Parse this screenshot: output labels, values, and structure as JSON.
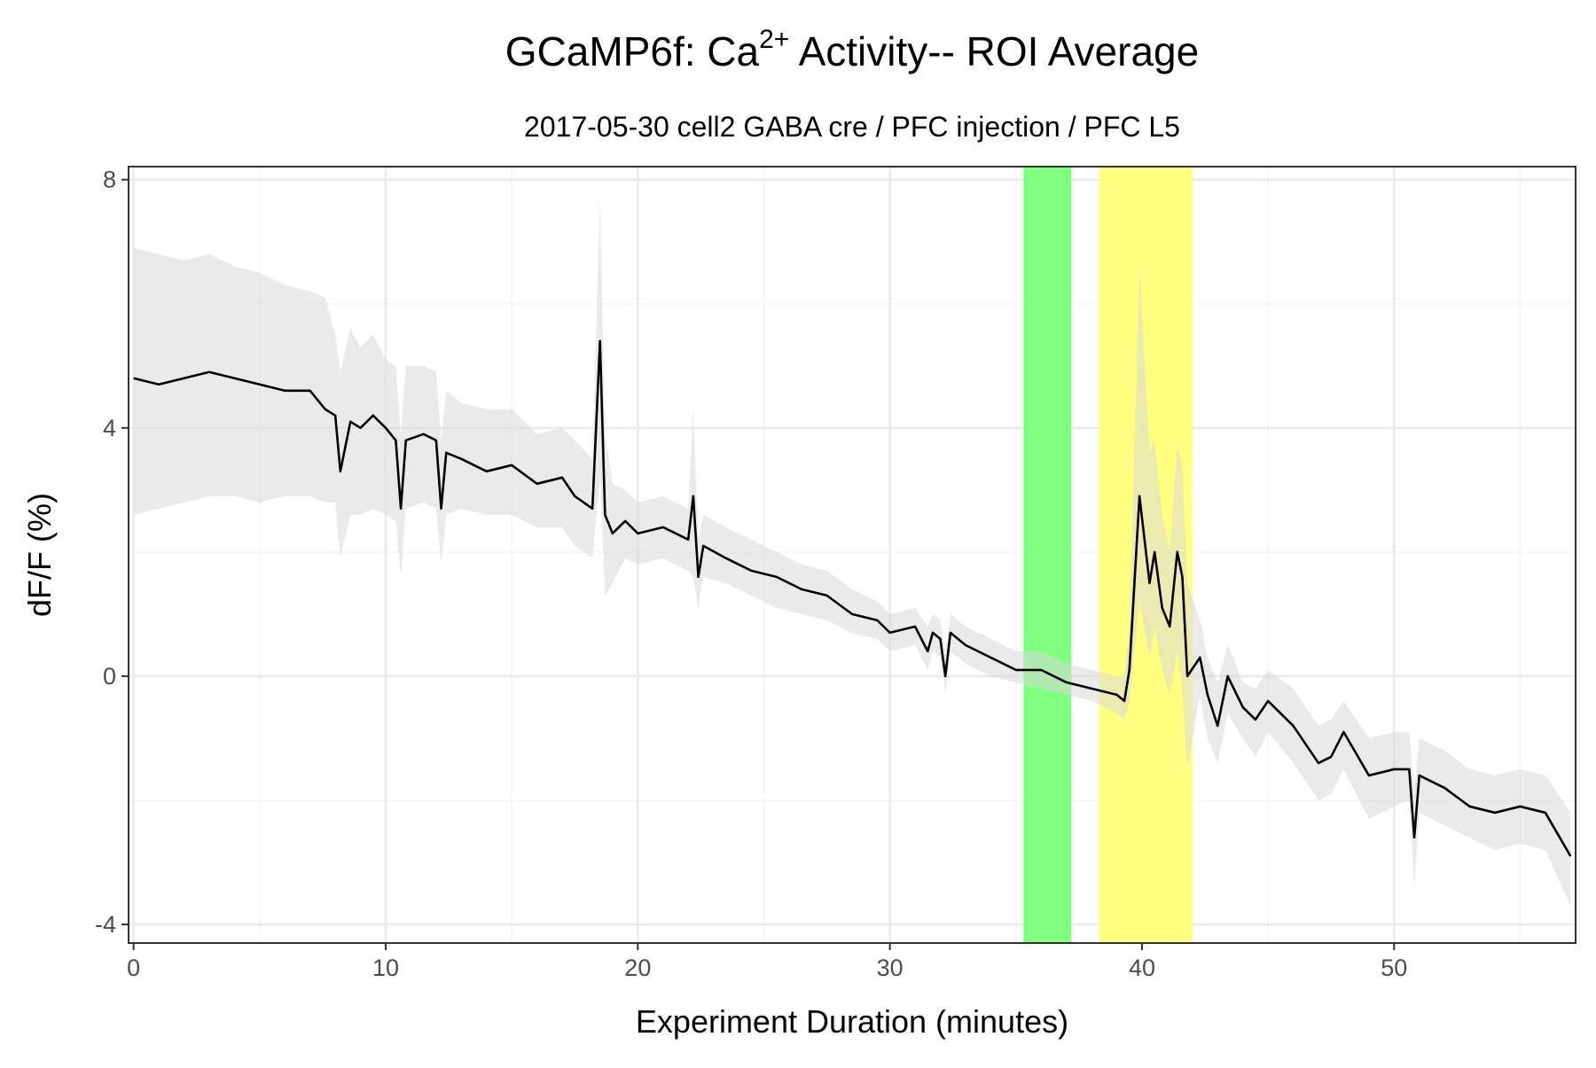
{
  "chart_data": {
    "type": "line",
    "title": [
      "GCaMP6f: Ca",
      "2+",
      " Activity-- ROI Average"
    ],
    "subtitle": "2017-05-30 cell2 GABA cre / PFC injection / PFC L5",
    "x_label": "Experiment Duration (minutes)",
    "y_label": "dF/F (%)",
    "xlim": [
      -0.2,
      57.2
    ],
    "ylim": [
      -4.3,
      8.21
    ],
    "xticks": [
      0,
      10,
      20,
      30,
      40,
      50
    ],
    "yticks": [
      -4,
      0,
      4,
      8
    ],
    "x_minor_ticks": [
      5,
      15,
      25,
      35,
      45,
      55
    ],
    "y_minor_ticks": [
      -2,
      2,
      6
    ],
    "grid": true,
    "highlights": [
      {
        "xmin": 35.3,
        "xmax": 37.2,
        "color": "#80ff80"
      },
      {
        "xmin": 38.3,
        "xmax": 42.0,
        "color": "#ffff80"
      }
    ],
    "x": [
      0,
      1,
      2,
      3,
      4,
      5,
      6,
      7,
      7.6,
      8.0,
      8.2,
      8.6,
      9,
      9.5,
      10,
      10.4,
      10.6,
      10.8,
      11.5,
      12,
      12.2,
      12.4,
      13,
      14,
      15,
      16,
      17,
      17.5,
      18.2,
      18.5,
      18.7,
      19,
      19.5,
      20,
      21,
      22,
      22.2,
      22.4,
      22.6,
      23.5,
      24.5,
      25.5,
      26.5,
      27.5,
      28.5,
      29.5,
      30,
      31,
      31.5,
      31.7,
      32,
      32.2,
      32.4,
      33,
      34,
      35,
      36,
      37,
      38,
      39,
      39.3,
      39.5,
      39.9,
      40.3,
      40.5,
      40.8,
      41.1,
      41.4,
      41.6,
      41.8,
      42.3,
      42.6,
      43.0,
      43.4,
      44,
      44.5,
      45,
      46,
      47,
      47.5,
      48,
      49,
      50,
      50.6,
      50.8,
      51,
      52,
      53,
      54,
      55,
      56,
      57
    ],
    "series": [
      {
        "color": "#000000",
        "ribbon_color": "#d9d9d9",
        "values": [
          4.8,
          4.7,
          4.8,
          4.9,
          4.8,
          4.7,
          4.6,
          4.6,
          4.3,
          4.2,
          3.3,
          4.1,
          4.0,
          4.2,
          4.0,
          3.8,
          2.7,
          3.8,
          3.9,
          3.8,
          2.7,
          3.6,
          3.5,
          3.3,
          3.4,
          3.1,
          3.2,
          2.9,
          2.7,
          5.4,
          2.6,
          2.3,
          2.5,
          2.3,
          2.4,
          2.2,
          2.9,
          1.6,
          2.1,
          1.9,
          1.7,
          1.6,
          1.4,
          1.3,
          1.0,
          0.9,
          0.7,
          0.8,
          0.4,
          0.7,
          0.6,
          0.0,
          0.7,
          0.5,
          0.3,
          0.1,
          0.1,
          -0.1,
          -0.2,
          -0.3,
          -0.4,
          0.1,
          2.9,
          1.5,
          2.0,
          1.1,
          0.8,
          2.0,
          1.6,
          0.0,
          0.3,
          -0.3,
          -0.8,
          0.0,
          -0.5,
          -0.7,
          -0.4,
          -0.8,
          -1.4,
          -1.3,
          -0.9,
          -1.6,
          -1.5,
          -1.5,
          -2.6,
          -1.6,
          -1.8,
          -2.1,
          -2.2,
          -2.1,
          -2.2,
          -2.9
        ],
        "lower": [
          2.6,
          2.7,
          2.8,
          2.9,
          2.9,
          2.8,
          2.9,
          2.9,
          2.8,
          2.8,
          1.9,
          2.6,
          2.6,
          2.7,
          2.6,
          2.5,
          1.6,
          2.7,
          2.8,
          2.7,
          1.8,
          2.6,
          2.7,
          2.6,
          2.6,
          2.4,
          2.4,
          2.1,
          1.9,
          3.2,
          1.3,
          1.5,
          1.9,
          1.8,
          1.9,
          1.7,
          1.6,
          1.1,
          1.6,
          1.5,
          1.3,
          1.1,
          1.0,
          0.9,
          0.7,
          0.6,
          0.4,
          0.5,
          0.1,
          0.4,
          0.3,
          -0.3,
          0.4,
          0.2,
          0.0,
          -0.1,
          -0.2,
          -0.3,
          -0.4,
          -0.6,
          -0.7,
          -0.4,
          1.2,
          0.3,
          0.8,
          0.1,
          -0.3,
          0.4,
          -0.2,
          -1.5,
          -0.3,
          -1.0,
          -1.4,
          -0.6,
          -1.0,
          -1.3,
          -0.9,
          -1.4,
          -2.0,
          -1.9,
          -1.5,
          -2.3,
          -2.1,
          -2.0,
          -3.4,
          -2.2,
          -2.4,
          -2.6,
          -2.8,
          -2.7,
          -2.8,
          -3.7
        ],
        "upper": [
          6.9,
          6.8,
          6.7,
          6.8,
          6.6,
          6.5,
          6.3,
          6.2,
          6.1,
          5.5,
          4.9,
          5.6,
          5.3,
          5.5,
          5.1,
          5.0,
          3.9,
          5.0,
          5.0,
          4.9,
          3.8,
          4.6,
          4.4,
          4.3,
          4.3,
          3.9,
          4.0,
          3.8,
          3.5,
          7.7,
          3.9,
          3.1,
          3.0,
          2.8,
          2.9,
          2.7,
          4.3,
          2.2,
          2.6,
          2.4,
          2.2,
          2.0,
          1.8,
          1.7,
          1.4,
          1.2,
          1.0,
          1.1,
          0.8,
          1.0,
          0.9,
          0.4,
          1.0,
          0.8,
          0.6,
          0.4,
          0.4,
          0.2,
          0.1,
          0.0,
          0.0,
          0.8,
          6.6,
          3.6,
          3.8,
          2.6,
          2.0,
          3.7,
          3.4,
          1.5,
          0.9,
          0.3,
          -0.1,
          0.5,
          -0.1,
          -0.2,
          0.1,
          -0.2,
          -0.8,
          -0.7,
          -0.4,
          -1.0,
          -0.9,
          -0.9,
          -1.8,
          -1.0,
          -1.2,
          -1.5,
          -1.6,
          -1.5,
          -1.6,
          -2.2
        ]
      }
    ]
  }
}
